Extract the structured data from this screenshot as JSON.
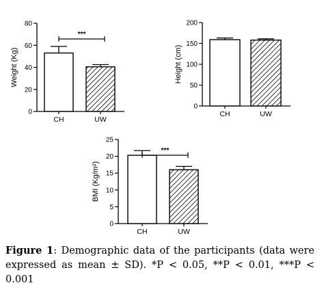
{
  "chart_data": [
    {
      "type": "bar",
      "ylabel": "Weight (Kg)",
      "categories": [
        "CH",
        "UW"
      ],
      "values": [
        53,
        40.5
      ],
      "errors": [
        6,
        2
      ],
      "ylim": [
        0,
        80
      ],
      "yticks": [
        0,
        20,
        40,
        60,
        80
      ],
      "fills": [
        "plain",
        "hatched"
      ],
      "significance": "***"
    },
    {
      "type": "bar",
      "ylabel": "Height (cm)",
      "categories": [
        "CH",
        "UW"
      ],
      "values": [
        159,
        158
      ],
      "errors": [
        4,
        3
      ],
      "ylim": [
        0,
        200
      ],
      "yticks": [
        0,
        50,
        100,
        150,
        200
      ],
      "fills": [
        "plain",
        "hatched"
      ],
      "significance": ""
    },
    {
      "type": "bar",
      "ylabel": "BMI (Kg/m²)",
      "categories": [
        "CH",
        "UW"
      ],
      "values": [
        20.3,
        16
      ],
      "errors": [
        1.4,
        1
      ],
      "ylim": [
        0,
        25
      ],
      "yticks": [
        0,
        5,
        10,
        15,
        20,
        25
      ],
      "fills": [
        "plain",
        "hatched"
      ],
      "significance": "***"
    }
  ],
  "caption": {
    "label": "Figure 1",
    "text": ": Demographic data of the participants (data were expressed as mean ± SD). *P < 0.05, **P < 0.01, ***P < 0.001"
  }
}
